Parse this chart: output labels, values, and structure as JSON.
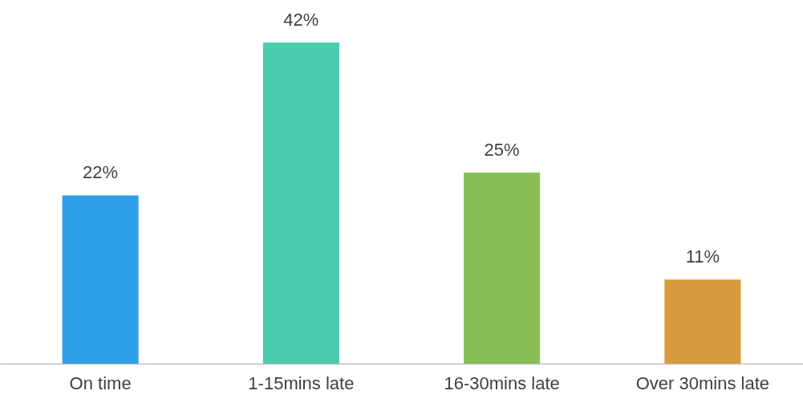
{
  "chart_data": {
    "type": "bar",
    "categories": [
      "On time",
      "1-15mins late",
      "16-30mins late",
      "Over 30mins late"
    ],
    "values": [
      22,
      42,
      25,
      11
    ],
    "value_labels": [
      "22%",
      "42%",
      "25%",
      "11%"
    ],
    "colors": [
      "#2e9fe8",
      "#4ccbae",
      "#88c057",
      "#d99b3e"
    ]
  }
}
